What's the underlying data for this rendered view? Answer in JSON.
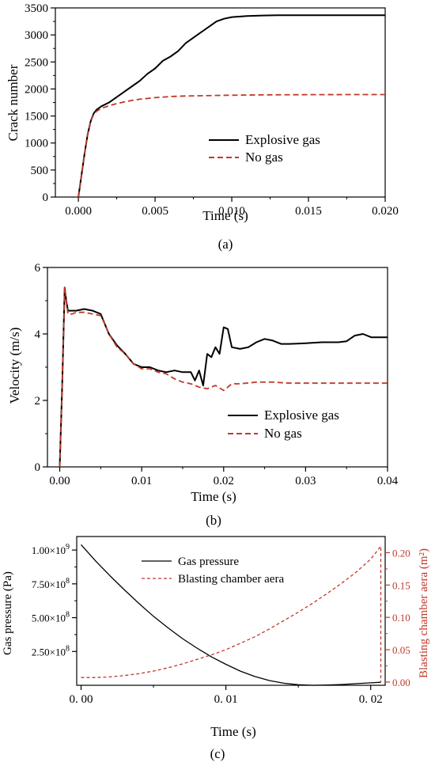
{
  "colors": {
    "black": "#000000",
    "red": "#c0392b",
    "axis": "#000000"
  },
  "panel_labels": [
    "(a)",
    "(b)",
    "(c)"
  ],
  "chart_data": [
    {
      "type": "line",
      "label": "(a)",
      "xlabel": "Time (s)",
      "ylabel": "Crack number",
      "xlim": [
        -0.0015,
        0.02
      ],
      "ylim": [
        0,
        3500
      ],
      "x_ticks": [
        0.0,
        0.005,
        0.01,
        0.015,
        0.02
      ],
      "x_tick_labels": [
        "0.000",
        "0.005",
        "0.010",
        "0.015",
        "0.020"
      ],
      "y_ticks": [
        0,
        500,
        1000,
        1500,
        2000,
        2500,
        3000,
        3500
      ],
      "y_tick_labels": [
        "0",
        "500",
        "1000",
        "1500",
        "2000",
        "2500",
        "3000",
        "3500"
      ],
      "legend_position": "center-right",
      "series": [
        {
          "name": "Explosive gas",
          "color": "#000000",
          "dash": "solid",
          "x": [
            0.0,
            0.0002,
            0.0004,
            0.0006,
            0.0008,
            0.001,
            0.0012,
            0.0015,
            0.002,
            0.0025,
            0.003,
            0.0035,
            0.004,
            0.0045,
            0.005,
            0.0055,
            0.006,
            0.0065,
            0.007,
            0.0075,
            0.008,
            0.0085,
            0.009,
            0.0095,
            0.01,
            0.011,
            0.012,
            0.013,
            0.014,
            0.015,
            0.016,
            0.017,
            0.018,
            0.019,
            0.02
          ],
          "y": [
            0,
            400,
            800,
            1150,
            1400,
            1550,
            1620,
            1680,
            1750,
            1850,
            1950,
            2050,
            2150,
            2280,
            2380,
            2520,
            2600,
            2700,
            2850,
            2950,
            3050,
            3150,
            3250,
            3300,
            3330,
            3350,
            3360,
            3365,
            3365,
            3365,
            3365,
            3365,
            3365,
            3365,
            3365
          ]
        },
        {
          "name": "No gas",
          "color": "#c0392b",
          "dash": "dashed",
          "x": [
            0.0,
            0.0002,
            0.0004,
            0.0006,
            0.0008,
            0.001,
            0.0012,
            0.0015,
            0.002,
            0.0025,
            0.003,
            0.0035,
            0.004,
            0.005,
            0.006,
            0.007,
            0.008,
            0.009,
            0.01,
            0.012,
            0.014,
            0.016,
            0.018,
            0.02
          ],
          "y": [
            0,
            400,
            800,
            1150,
            1400,
            1530,
            1590,
            1640,
            1690,
            1730,
            1760,
            1790,
            1810,
            1840,
            1860,
            1870,
            1875,
            1880,
            1885,
            1890,
            1893,
            1895,
            1896,
            1897
          ]
        }
      ]
    },
    {
      "type": "line",
      "label": "(b)",
      "xlabel": "Time (s)",
      "ylabel": "Velocity (m/s)",
      "xlim": [
        -0.0015,
        0.04
      ],
      "ylim": [
        0,
        6
      ],
      "x_ticks": [
        0.0,
        0.01,
        0.02,
        0.03,
        0.04
      ],
      "x_tick_labels": [
        "0.00",
        "0.01",
        "0.02",
        "0.03",
        "0.04"
      ],
      "y_ticks": [
        0,
        2,
        4,
        6
      ],
      "y_tick_labels": [
        "0",
        "2",
        "4",
        "6"
      ],
      "legend_position": "lower-right",
      "series": [
        {
          "name": "Explosive gas",
          "color": "#000000",
          "dash": "solid",
          "x": [
            0.0,
            0.0003,
            0.0006,
            0.0008,
            0.001,
            0.0015,
            0.002,
            0.003,
            0.004,
            0.005,
            0.0055,
            0.006,
            0.007,
            0.008,
            0.009,
            0.01,
            0.011,
            0.012,
            0.013,
            0.014,
            0.015,
            0.016,
            0.0165,
            0.017,
            0.0175,
            0.018,
            0.0185,
            0.019,
            0.0195,
            0.02,
            0.0205,
            0.021,
            0.022,
            0.023,
            0.024,
            0.025,
            0.026,
            0.027,
            0.028,
            0.03,
            0.032,
            0.034,
            0.035,
            0.036,
            0.037,
            0.038,
            0.039,
            0.04
          ],
          "y": [
            0,
            2.5,
            5.4,
            5.0,
            4.7,
            4.7,
            4.7,
            4.75,
            4.7,
            4.6,
            4.3,
            4.0,
            3.65,
            3.4,
            3.1,
            3.0,
            3.0,
            2.9,
            2.85,
            2.9,
            2.85,
            2.85,
            2.6,
            2.9,
            2.45,
            3.4,
            3.3,
            3.6,
            3.4,
            4.2,
            4.15,
            3.6,
            3.55,
            3.6,
            3.75,
            3.85,
            3.8,
            3.7,
            3.7,
            3.72,
            3.75,
            3.75,
            3.78,
            3.95,
            4.0,
            3.9,
            3.9,
            3.9
          ]
        },
        {
          "name": "No gas",
          "color": "#c0392b",
          "dash": "dashed",
          "x": [
            0.0,
            0.0003,
            0.0006,
            0.0008,
            0.001,
            0.0015,
            0.002,
            0.003,
            0.004,
            0.005,
            0.0055,
            0.006,
            0.007,
            0.008,
            0.009,
            0.01,
            0.011,
            0.012,
            0.013,
            0.014,
            0.015,
            0.016,
            0.017,
            0.018,
            0.019,
            0.02,
            0.021,
            0.022,
            0.024,
            0.026,
            0.028,
            0.03,
            0.032,
            0.034,
            0.036,
            0.038,
            0.04
          ],
          "y": [
            0,
            2.5,
            5.4,
            5.0,
            4.6,
            4.6,
            4.65,
            4.65,
            4.6,
            4.55,
            4.3,
            4.0,
            3.6,
            3.4,
            3.1,
            2.95,
            2.95,
            2.85,
            2.8,
            2.65,
            2.55,
            2.5,
            2.4,
            2.35,
            2.45,
            2.3,
            2.5,
            2.5,
            2.55,
            2.55,
            2.52,
            2.52,
            2.52,
            2.52,
            2.52,
            2.52,
            2.52
          ]
        }
      ]
    },
    {
      "type": "line",
      "label": "(c)",
      "xlabel": "Time (s)",
      "ylabel": "Gas pressure (Pa)",
      "ylabel_right": "Blasting chamber aera (m²)",
      "xlim": [
        -0.0003,
        0.021
      ],
      "ylim": [
        0,
        1100000000.0
      ],
      "ylim_right": [
        -0.005,
        0.225
      ],
      "x_ticks": [
        0.0,
        0.01,
        0.02
      ],
      "x_tick_labels": [
        "0. 00",
        "0. 01",
        "0. 02"
      ],
      "y_ticks": [
        250000000.0,
        500000000.0,
        750000000.0,
        1000000000.0
      ],
      "y_tick_labels": [
        {
          "mantissa": "2.50",
          "exponent": "8"
        },
        {
          "mantissa": "5.00",
          "exponent": "8"
        },
        {
          "mantissa": "7.50",
          "exponent": "8"
        },
        {
          "mantissa": "1.00",
          "exponent": "9"
        }
      ],
      "y_ticks_right": [
        0.0,
        0.05,
        0.1,
        0.15,
        0.2
      ],
      "y_tick_labels_right": [
        "0.00",
        "0.05",
        "0.10",
        "0.15",
        "0.20"
      ],
      "legend_position": "top-center",
      "series": [
        {
          "name": "Gas pressure",
          "color": "#000000",
          "dash": "solid",
          "axis": "left",
          "x": [
            0.0,
            0.001,
            0.002,
            0.003,
            0.004,
            0.005,
            0.006,
            0.007,
            0.008,
            0.009,
            0.01,
            0.011,
            0.012,
            0.013,
            0.014,
            0.015,
            0.016,
            0.017,
            0.018,
            0.019,
            0.02,
            0.0207
          ],
          "y": [
            1040000000.0,
            920000000.0,
            810000000.0,
            705000000.0,
            605000000.0,
            510000000.0,
            425000000.0,
            345000000.0,
            275000000.0,
            210000000.0,
            155000000.0,
            105000000.0,
            65000000.0,
            35000000.0,
            15000000.0,
            4000000.0,
            0,
            2000000.0,
            6000000.0,
            12000000.0,
            18000000.0,
            22000000.0
          ]
        },
        {
          "name": "Blasting chamber aera",
          "color": "#c0392b",
          "dash": "dashed",
          "axis": "right",
          "x": [
            0.0,
            0.001,
            0.002,
            0.003,
            0.004,
            0.005,
            0.006,
            0.007,
            0.008,
            0.009,
            0.01,
            0.011,
            0.012,
            0.013,
            0.014,
            0.015,
            0.016,
            0.017,
            0.018,
            0.019,
            0.02,
            0.0207,
            0.0207
          ],
          "y": [
            0.007,
            0.007,
            0.008,
            0.01,
            0.013,
            0.017,
            0.022,
            0.028,
            0.035,
            0.042,
            0.05,
            0.06,
            0.07,
            0.082,
            0.095,
            0.108,
            0.122,
            0.137,
            0.153,
            0.17,
            0.19,
            0.21,
            0.0
          ]
        }
      ]
    }
  ]
}
